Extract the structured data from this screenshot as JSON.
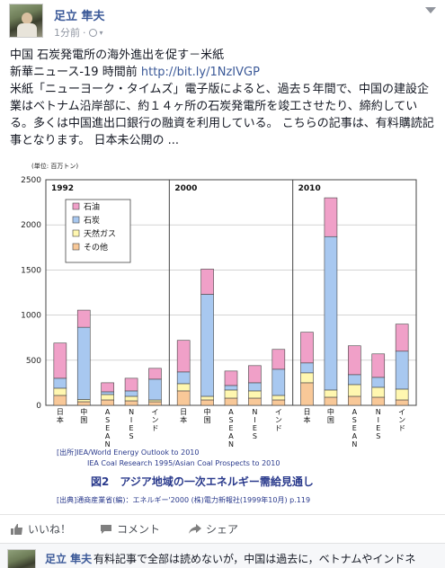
{
  "post": {
    "author": "足立 隼夫",
    "time": "1分前",
    "audience_icon": "globe-icon",
    "title_line": "中国 石炭発電所の海外進出を促す－米紙",
    "source_prefix": "新華ニュース-19 時間前 ",
    "source_link": "http://bit.ly/1NzIVGP",
    "body": "米紙「ニューヨーク・タイムズ」電子版によると、過去５年間で、中国の建設企業はベトナム沿岸部に、約１４ヶ所の石炭発電所を竣工させたり、締約している。多くは中国進出口銀行の融資を利用している。 こちらの記事は、有料購読記事となります。 日本未公開の ..."
  },
  "actions": {
    "like": "いいね！",
    "comment": "コメント",
    "share": "シェア"
  },
  "comment": {
    "author": "足立 隼夫",
    "text": "有料記事で全部は読めないが，中国は過去に，ベトナムやインドネ"
  },
  "chart_data": {
    "type": "bar",
    "unit_label": "(単位: 百万トン)",
    "ylim": [
      0,
      2500
    ],
    "yticks": [
      0,
      500,
      1000,
      1500,
      2000,
      2500
    ],
    "legend": [
      "石油",
      "石炭",
      "天然ガス",
      "その他"
    ],
    "legend_placement": "top-left",
    "colors": {
      "石油": "#f0a0c8",
      "石炭": "#a8c8f0",
      "天然ガス": "#fff7b0",
      "その他": "#f8c898"
    },
    "groups": [
      {
        "year": "1992",
        "bars": [
          {
            "label": "日本",
            "その他": 110,
            "天然ガス": 80,
            "石炭": 110,
            "石油": 390
          },
          {
            "label": "中国",
            "その他": 40,
            "天然ガス": 25,
            "石炭": 800,
            "石油": 190
          },
          {
            "label": "ASEAN",
            "その他": 60,
            "天然ガス": 60,
            "石炭": 30,
            "石油": 100
          },
          {
            "label": "NIES",
            "その他": 50,
            "天然ガス": 50,
            "石炭": 60,
            "石油": 140
          },
          {
            "label": "インド",
            "その他": 40,
            "天然ガス": 20,
            "石炭": 230,
            "石油": 120
          }
        ]
      },
      {
        "year": "2000",
        "bars": [
          {
            "label": "日本",
            "その他": 160,
            "天然ガス": 80,
            "石炭": 130,
            "石油": 350
          },
          {
            "label": "中国",
            "その他": 60,
            "天然ガス": 40,
            "石炭": 1130,
            "石油": 280
          },
          {
            "label": "ASEAN",
            "その他": 80,
            "天然ガス": 90,
            "石炭": 50,
            "石油": 160
          },
          {
            "label": "NIES",
            "その他": 80,
            "天然ガス": 80,
            "石炭": 90,
            "石油": 190
          },
          {
            "label": "インド",
            "その他": 60,
            "天然ガス": 50,
            "石炭": 290,
            "石油": 220
          }
        ]
      },
      {
        "year": "2010",
        "bars": [
          {
            "label": "日本",
            "その他": 250,
            "天然ガス": 110,
            "石炭": 110,
            "石油": 340
          },
          {
            "label": "中国",
            "その他": 90,
            "天然ガス": 80,
            "石炭": 1700,
            "石油": 430
          },
          {
            "label": "ASEAN",
            "その他": 100,
            "天然ガス": 130,
            "石炭": 110,
            "石油": 320
          },
          {
            "label": "NIES",
            "その他": 90,
            "天然ガス": 110,
            "石炭": 110,
            "石油": 260
          },
          {
            "label": "インド",
            "その他": 60,
            "天然ガス": 120,
            "石炭": 420,
            "石油": 300
          }
        ]
      }
    ],
    "source_line1": "[出所]IEA/World Energy Outlook to 2010",
    "source_line2": "IEA Coal Research 1995/Asian Coal Prospects to 2010",
    "caption": "図2　アジア地域の一次エネルギー需給見通し",
    "credit": "[出典]通商産業省(編)：エネルギー'2000 (株)電力新報社(1999年10月) p.119"
  }
}
